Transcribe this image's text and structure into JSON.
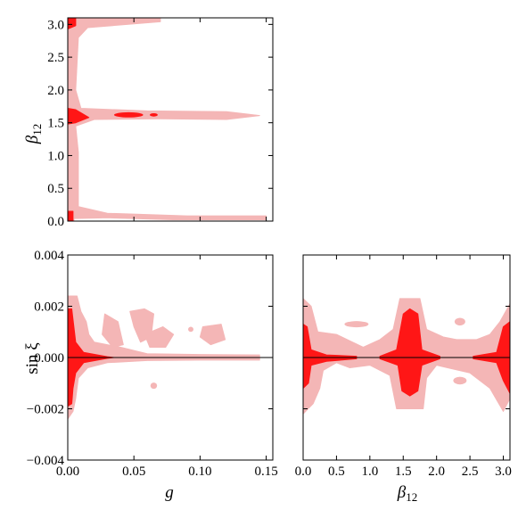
{
  "chart_data": [
    {
      "type": "area",
      "panel": "top-left",
      "xlabel": "",
      "ylabel": "β12",
      "xlim": [
        0.0,
        0.155
      ],
      "ylim": [
        0.0,
        3.1
      ],
      "xticks": [
        0.0,
        0.05,
        0.1,
        0.15
      ],
      "xtick_labels": [],
      "yticks": [
        0.0,
        0.5,
        1.0,
        1.5,
        2.0,
        2.5,
        3.0
      ],
      "ytick_labels": [
        "0.0",
        "0.5",
        "1.0",
        "1.5",
        "2.0",
        "2.5",
        "3.0"
      ],
      "regions": [
        {
          "level": "outer",
          "shape": "rect",
          "x": [
            0.0,
            0.005
          ],
          "y": [
            0.0,
            3.1
          ]
        },
        {
          "level": "outer",
          "shape": "poly",
          "points": [
            [
              0.005,
              3.1
            ],
            [
              0.005,
              0.04
            ],
            [
              0.03,
              0.05
            ],
            [
              0.08,
              0.02
            ],
            [
              0.15,
              0.02
            ],
            [
              0.15,
              0.08
            ],
            [
              0.09,
              0.08
            ],
            [
              0.03,
              0.12
            ],
            [
              0.008,
              0.22
            ],
            [
              0.008,
              1.05
            ],
            [
              0.006,
              1.45
            ],
            [
              0.02,
              1.55
            ],
            [
              0.07,
              1.56
            ],
            [
              0.12,
              1.55
            ],
            [
              0.145,
              1.61
            ],
            [
              0.12,
              1.67
            ],
            [
              0.06,
              1.68
            ],
            [
              0.01,
              1.72
            ],
            [
              0.006,
              2.0
            ],
            [
              0.008,
              2.8
            ],
            [
              0.015,
              2.95
            ],
            [
              0.07,
              3.04
            ],
            [
              0.07,
              3.1
            ]
          ]
        },
        {
          "level": "inner",
          "shape": "poly",
          "points": [
            [
              0.0,
              0.0
            ],
            [
              0.004,
              0.0
            ],
            [
              0.004,
              0.15
            ],
            [
              0.0,
              0.15
            ]
          ]
        },
        {
          "level": "inner",
          "shape": "poly",
          "points": [
            [
              0.0,
              1.48
            ],
            [
              0.006,
              1.5
            ],
            [
              0.016,
              1.58
            ],
            [
              0.006,
              1.7
            ],
            [
              0.0,
              1.72
            ]
          ]
        },
        {
          "level": "inner",
          "shape": "poly",
          "points": [
            [
              0.0,
              2.93
            ],
            [
              0.006,
              2.98
            ],
            [
              0.006,
              3.1
            ],
            [
              0.0,
              3.1
            ]
          ]
        },
        {
          "level": "inner",
          "shape": "ellipse",
          "cx": 0.046,
          "cy": 1.62,
          "rx": 0.011,
          "ry": 0.04
        },
        {
          "level": "inner",
          "shape": "ellipse",
          "cx": 0.065,
          "cy": 1.62,
          "rx": 0.003,
          "ry": 0.025
        }
      ]
    },
    {
      "type": "area",
      "panel": "bottom-left",
      "xlabel": "g",
      "ylabel": "sin ξ",
      "xlim": [
        0.0,
        0.155
      ],
      "ylim": [
        -0.004,
        0.004
      ],
      "xticks": [
        0.0,
        0.05,
        0.1,
        0.15
      ],
      "xtick_labels": [
        "0.00",
        "0.05",
        "0.10",
        "0.15"
      ],
      "yticks": [
        -0.004,
        -0.002,
        0.0,
        0.002,
        0.004
      ],
      "ytick_labels": [
        "−0.004",
        "−0.002",
        "0.000",
        "0.002",
        "0.004"
      ],
      "reference_line_y": 0.0,
      "regions": [
        {
          "level": "outer",
          "shape": "poly",
          "points": [
            [
              0.0,
              0.0024
            ],
            [
              0.007,
              0.0024
            ],
            [
              0.01,
              0.0018
            ],
            [
              0.014,
              0.0014
            ],
            [
              0.016,
              0.0009
            ],
            [
              0.02,
              0.0006
            ],
            [
              0.04,
              0.0004
            ],
            [
              0.06,
              0.00015
            ],
            [
              0.1,
              0.00012
            ],
            [
              0.145,
              0.0001
            ],
            [
              0.145,
              -0.0001
            ],
            [
              0.1,
              -0.0001
            ],
            [
              0.06,
              -0.00012
            ],
            [
              0.03,
              -0.0002
            ],
            [
              0.015,
              -0.0004
            ],
            [
              0.008,
              -0.0008
            ],
            [
              0.006,
              -0.0016
            ],
            [
              0.004,
              -0.0021
            ],
            [
              0.0,
              -0.0024
            ]
          ]
        },
        {
          "level": "outer",
          "shape": "poly",
          "points": [
            [
              0.028,
              0.0017
            ],
            [
              0.038,
              0.0014
            ],
            [
              0.042,
              0.0005
            ],
            [
              0.034,
              0.0004
            ],
            [
              0.026,
              0.0009
            ]
          ]
        },
        {
          "level": "outer",
          "shape": "poly",
          "points": [
            [
              0.047,
              0.0018
            ],
            [
              0.058,
              0.0019
            ],
            [
              0.065,
              0.0017
            ],
            [
              0.063,
              0.0008
            ],
            [
              0.055,
              0.0006
            ],
            [
              0.05,
              0.0012
            ]
          ]
        },
        {
          "level": "outer",
          "shape": "poly",
          "points": [
            [
              0.058,
              0.0009
            ],
            [
              0.072,
              0.0012
            ],
            [
              0.08,
              0.0009
            ],
            [
              0.074,
              0.0004
            ],
            [
              0.062,
              0.0004
            ]
          ]
        },
        {
          "level": "outer",
          "shape": "poly",
          "points": [
            [
              0.102,
              0.0012
            ],
            [
              0.116,
              0.0013
            ],
            [
              0.119,
              0.0007
            ],
            [
              0.108,
              0.0005
            ],
            [
              0.1,
              0.0008
            ]
          ]
        },
        {
          "level": "outer",
          "shape": "ellipse",
          "cx": 0.093,
          "cy": 0.0011,
          "rx": 0.002,
          "ry": 0.0001
        },
        {
          "level": "outer",
          "shape": "ellipse",
          "cx": 0.065,
          "cy": -0.0011,
          "rx": 0.0025,
          "ry": 0.00012
        },
        {
          "level": "inner",
          "shape": "poly",
          "points": [
            [
              0.0,
              0.0019
            ],
            [
              0.003,
              0.0019
            ],
            [
              0.006,
              0.0006
            ],
            [
              0.012,
              0.0002
            ],
            [
              0.03,
              3e-05
            ],
            [
              0.035,
              0.0
            ],
            [
              0.03,
              -3e-05
            ],
            [
              0.012,
              -0.0002
            ],
            [
              0.006,
              -0.0006
            ],
            [
              0.004,
              -0.0012
            ],
            [
              0.003,
              -0.0018
            ],
            [
              0.0,
              -0.0019
            ]
          ]
        }
      ]
    },
    {
      "type": "area",
      "panel": "bottom-right",
      "xlabel": "β12",
      "ylabel": "",
      "xlim": [
        0.0,
        3.1
      ],
      "ylim": [
        -0.004,
        0.004
      ],
      "xticks": [
        0.0,
        0.5,
        1.0,
        1.5,
        2.0,
        2.5,
        3.0
      ],
      "xtick_labels": [
        "0.0",
        "0.5",
        "1.0",
        "1.5",
        "2.0",
        "2.5",
        "3.0"
      ],
      "yticks": [
        -0.004,
        -0.002,
        0.0,
        0.002,
        0.004
      ],
      "ytick_labels": [],
      "reference_line_y": 0.0,
      "regions": [
        {
          "level": "outer",
          "shape": "poly",
          "points": [
            [
              0.0,
              0.0023
            ],
            [
              0.12,
              0.002
            ],
            [
              0.22,
              0.001
            ],
            [
              0.5,
              0.0009
            ],
            [
              0.9,
              0.0004
            ],
            [
              1.15,
              0.0007
            ],
            [
              1.35,
              0.0011
            ],
            [
              1.45,
              0.0023
            ],
            [
              1.75,
              0.0023
            ],
            [
              1.85,
              0.0011
            ],
            [
              2.1,
              0.0008
            ],
            [
              2.3,
              0.0007
            ],
            [
              2.6,
              0.0007
            ],
            [
              2.8,
              0.0009
            ],
            [
              2.95,
              0.0014
            ],
            [
              3.1,
              0.0021
            ],
            [
              3.1,
              -0.0016
            ],
            [
              3.0,
              -0.0021
            ],
            [
              2.8,
              -0.0012
            ],
            [
              2.5,
              -0.0006
            ],
            [
              2.0,
              -0.0003
            ],
            [
              1.85,
              -0.0008
            ],
            [
              1.8,
              -0.002
            ],
            [
              1.4,
              -0.002
            ],
            [
              1.3,
              -0.0007
            ],
            [
              1.0,
              -0.0003
            ],
            [
              0.7,
              -0.0004
            ],
            [
              0.5,
              -0.0002
            ],
            [
              0.3,
              -0.0005
            ],
            [
              0.25,
              -0.0012
            ],
            [
              0.15,
              -0.0018
            ],
            [
              0.0,
              -0.0022
            ]
          ]
        },
        {
          "level": "outer",
          "shape": "ellipse",
          "cx": 0.8,
          "cy": 0.0013,
          "rx": 0.18,
          "ry": 0.00012
        },
        {
          "level": "outer",
          "shape": "ellipse",
          "cx": 2.35,
          "cy": 0.0014,
          "rx": 0.08,
          "ry": 0.00015
        },
        {
          "level": "outer",
          "shape": "ellipse",
          "cx": 2.35,
          "cy": -0.0009,
          "rx": 0.1,
          "ry": 0.00015
        },
        {
          "level": "inner",
          "shape": "poly",
          "points": [
            [
              0.0,
              0.0013
            ],
            [
              0.06,
              0.0012
            ],
            [
              0.12,
              0.0003
            ],
            [
              0.35,
              0.0001
            ],
            [
              0.8,
              5e-05
            ],
            [
              0.8,
              -5e-05
            ],
            [
              0.35,
              -0.00015
            ],
            [
              0.12,
              -0.0003
            ],
            [
              0.08,
              -0.001
            ],
            [
              0.0,
              -0.0012
            ]
          ]
        },
        {
          "level": "inner",
          "shape": "poly",
          "points": [
            [
              1.15,
              5e-05
            ],
            [
              1.4,
              0.0003
            ],
            [
              1.5,
              0.0017
            ],
            [
              1.6,
              0.0019
            ],
            [
              1.72,
              0.0017
            ],
            [
              1.78,
              0.0003
            ],
            [
              2.05,
              5e-05
            ],
            [
              2.05,
              -5e-05
            ],
            [
              1.78,
              -0.0003
            ],
            [
              1.72,
              -0.0013
            ],
            [
              1.6,
              -0.0015
            ],
            [
              1.48,
              -0.0013
            ],
            [
              1.42,
              -0.0003
            ],
            [
              1.15,
              -5e-05
            ]
          ]
        },
        {
          "level": "inner",
          "shape": "poly",
          "points": [
            [
              2.55,
              5e-05
            ],
            [
              2.9,
              0.0002
            ],
            [
              3.0,
              0.0012
            ],
            [
              3.1,
              0.0014
            ],
            [
              3.1,
              -0.0014
            ],
            [
              3.0,
              -0.0009
            ],
            [
              2.9,
              -0.0002
            ],
            [
              2.55,
              -5e-05
            ]
          ]
        }
      ]
    }
  ],
  "colors": {
    "outer_region": "#f4b6b6",
    "inner_region": "#ff1616",
    "reference_line": "#000000",
    "frame": "#000000"
  },
  "labels": {
    "top_ylabel_main": "β",
    "top_ylabel_sub": "12",
    "bl_ylabel": "sin ξ",
    "bl_xlabel": "g",
    "br_xlabel_main": "β",
    "br_xlabel_sub": "12"
  }
}
